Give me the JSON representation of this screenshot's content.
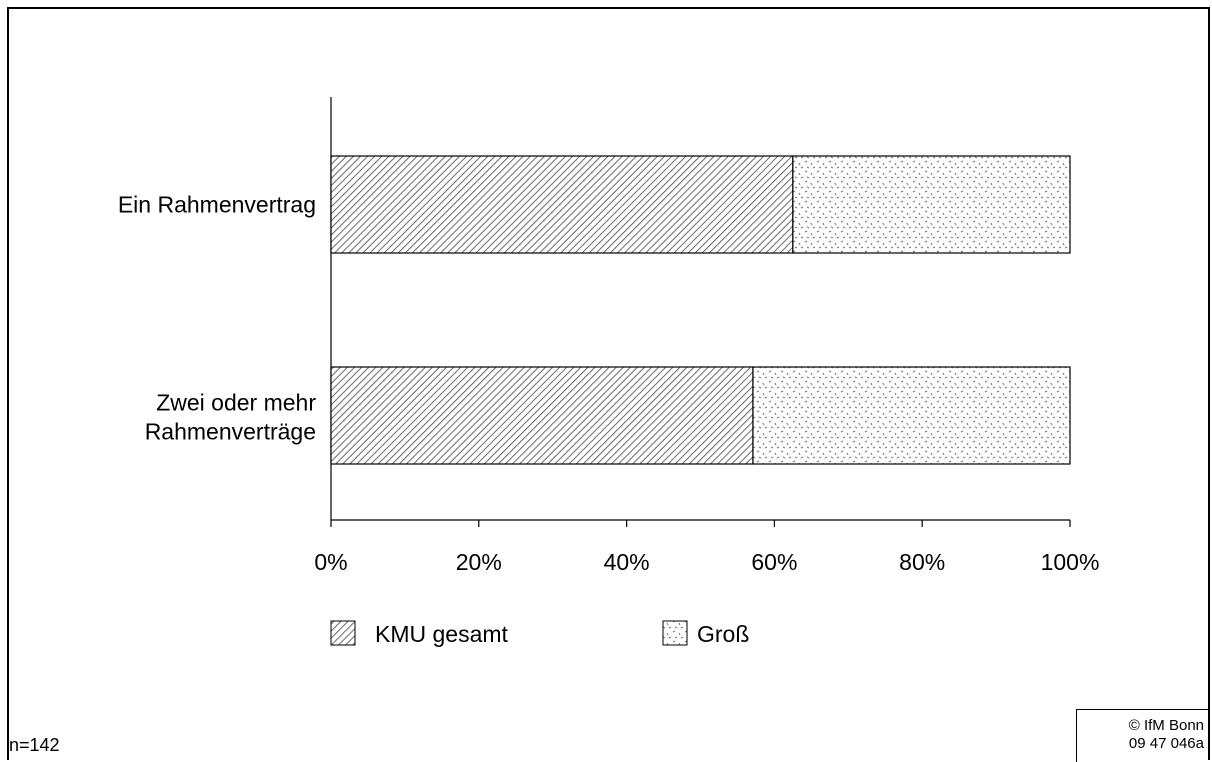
{
  "chart_data": {
    "type": "bar",
    "orientation": "horizontal",
    "stacked": true,
    "percent_stacked": true,
    "categories": [
      "Ein Rahmenvertrag",
      "Zwei oder mehr Rahmenverträge"
    ],
    "series": [
      {
        "name": "KMU gesamt",
        "values": [
          62.5,
          57.1
        ],
        "pattern": "diagonal-hatch",
        "color": "#000000"
      },
      {
        "name": "Groß",
        "values": [
          37.5,
          42.9
        ],
        "pattern": "dotted-confetti",
        "color": "#000000"
      }
    ],
    "xlim": [
      0,
      100
    ],
    "xticks": [
      "0%",
      "20%",
      "40%",
      "60%",
      "80%",
      "100%"
    ],
    "grid": false,
    "legend_position": "bottom"
  },
  "footer": {
    "sample_size": "n=142",
    "copyright": "© IfM Bonn",
    "figure_id": "09 47 046a"
  }
}
